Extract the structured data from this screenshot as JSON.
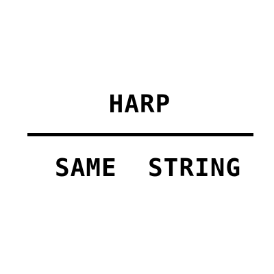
{
  "puzzle": {
    "top_text": "HARP",
    "bottom_text": "SAME  STRING",
    "line_color": "#000000",
    "text_color": "#000000"
  }
}
